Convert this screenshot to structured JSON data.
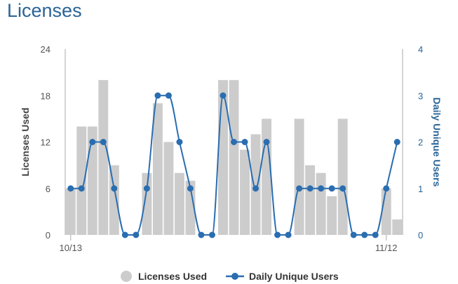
{
  "title": "Licenses",
  "colors": {
    "bar": "#cccccc",
    "line": "#2a6db0",
    "title": "#2a6496",
    "axis": "#aaaaaa"
  },
  "chart_data": {
    "type": "bar+line",
    "x_tick_labels": [
      "10/13",
      "11/12"
    ],
    "ylabel_left": "Licenses Used",
    "ylabel_right": "Daily Unique Users",
    "ylim_left": [
      0,
      24
    ],
    "ylim_right": [
      0,
      4
    ],
    "yticks_left": [
      "0",
      "6",
      "12",
      "18",
      "24"
    ],
    "yticks_right": [
      "0",
      "1",
      "2",
      "3",
      "4"
    ],
    "legend_position": "bottom-center",
    "series": [
      {
        "name": "Licenses Used",
        "type": "bar",
        "axis": "left",
        "values": [
          6,
          14,
          14,
          20,
          9,
          0,
          0,
          8,
          17,
          12,
          8,
          7,
          0,
          0,
          20,
          20,
          11,
          13,
          15,
          0,
          0,
          15,
          9,
          8,
          5,
          15,
          0,
          0,
          0,
          6,
          2
        ]
      },
      {
        "name": "Daily Unique Users",
        "type": "line",
        "axis": "right",
        "values": [
          1,
          1,
          2,
          2,
          1,
          0,
          0,
          1,
          3,
          3,
          2,
          1,
          0,
          0,
          3,
          2,
          2,
          1,
          2,
          0,
          0,
          1,
          1,
          1,
          1,
          1,
          0,
          0,
          0,
          1,
          2
        ]
      }
    ]
  }
}
